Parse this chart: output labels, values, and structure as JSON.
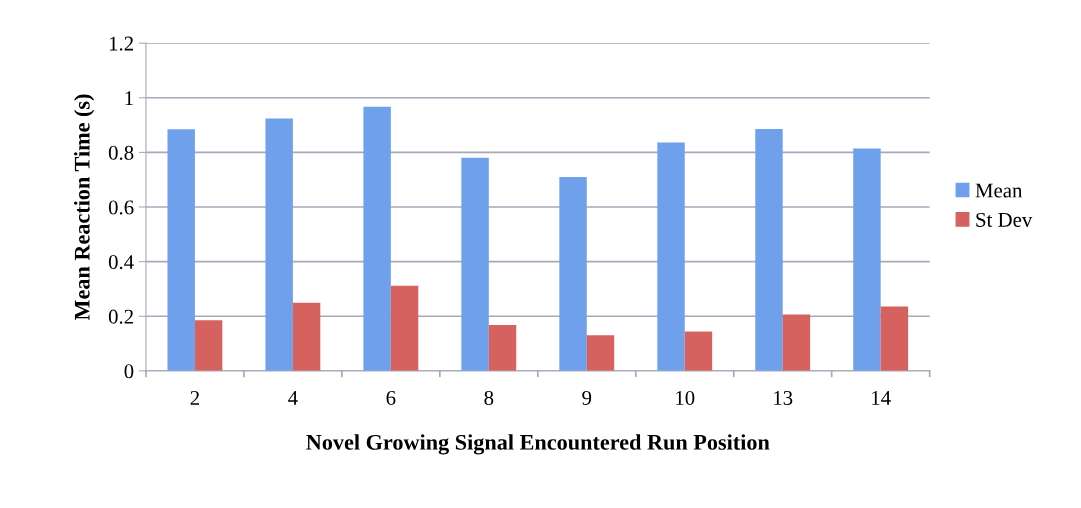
{
  "chart_data": {
    "type": "bar",
    "xlabel": "Novel Growing Signal Encountered Run Position",
    "ylabel": "Mean Reaction Time (s)",
    "categories": [
      "2",
      "4",
      "6",
      "8",
      "9",
      "10",
      "13",
      "14"
    ],
    "series": [
      {
        "name": "Mean",
        "color": "#6fa0ec",
        "values": [
          0.885,
          0.924,
          0.967,
          0.78,
          0.71,
          0.836,
          0.886,
          0.814
        ]
      },
      {
        "name": "St Dev",
        "color": "#d5625f",
        "values": [
          0.185,
          0.249,
          0.312,
          0.168,
          0.13,
          0.144,
          0.206,
          0.236
        ]
      }
    ],
    "ylim": [
      0,
      1.2
    ],
    "yticks": [
      0,
      0.2,
      0.4,
      0.6,
      0.8,
      1,
      1.2
    ],
    "grid": "y",
    "legend": "right"
  }
}
